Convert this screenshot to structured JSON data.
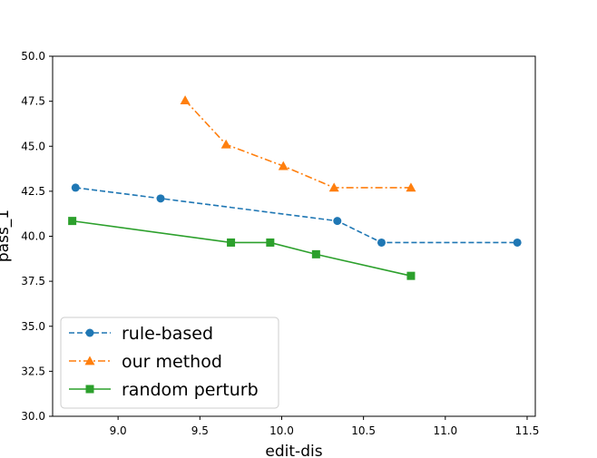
{
  "chart_data": {
    "type": "line",
    "title": "",
    "xlabel": "edit-dis",
    "ylabel": "pass_1",
    "xlim": [
      8.6,
      11.55
    ],
    "ylim": [
      30.0,
      50.0
    ],
    "xticks": [
      9.0,
      9.5,
      10.0,
      10.5,
      11.0,
      11.5
    ],
    "xtick_labels": [
      "9.0",
      "9.5",
      "10.0",
      "10.5",
      "11.0",
      "11.5"
    ],
    "yticks": [
      30.0,
      32.5,
      35.0,
      37.5,
      40.0,
      42.5,
      45.0,
      47.5,
      50.0
    ],
    "ytick_labels": [
      "30.0",
      "32.5",
      "35.0",
      "37.5",
      "40.0",
      "42.5",
      "45.0",
      "47.5",
      "50.0"
    ],
    "grid": false,
    "legend_position": "lower-left",
    "series": [
      {
        "name": "rule-based",
        "color": "#1f77b4",
        "line_style": "dashed",
        "marker": "circle",
        "x": [
          8.74,
          9.26,
          10.34,
          10.61,
          11.44
        ],
        "y": [
          42.7,
          42.1,
          40.85,
          39.65,
          39.65
        ]
      },
      {
        "name": "our method",
        "color": "#ff7f0e",
        "line_style": "dashdot",
        "marker": "triangle",
        "x": [
          9.41,
          9.66,
          10.01,
          10.32,
          10.79
        ],
        "y": [
          47.55,
          45.1,
          43.9,
          42.7,
          42.7
        ]
      },
      {
        "name": "random perturb",
        "color": "#2ca02c",
        "line_style": "solid",
        "marker": "square",
        "x": [
          8.72,
          9.69,
          9.93,
          10.21,
          10.79
        ],
        "y": [
          40.85,
          39.65,
          39.65,
          39.0,
          37.8
        ]
      }
    ]
  }
}
